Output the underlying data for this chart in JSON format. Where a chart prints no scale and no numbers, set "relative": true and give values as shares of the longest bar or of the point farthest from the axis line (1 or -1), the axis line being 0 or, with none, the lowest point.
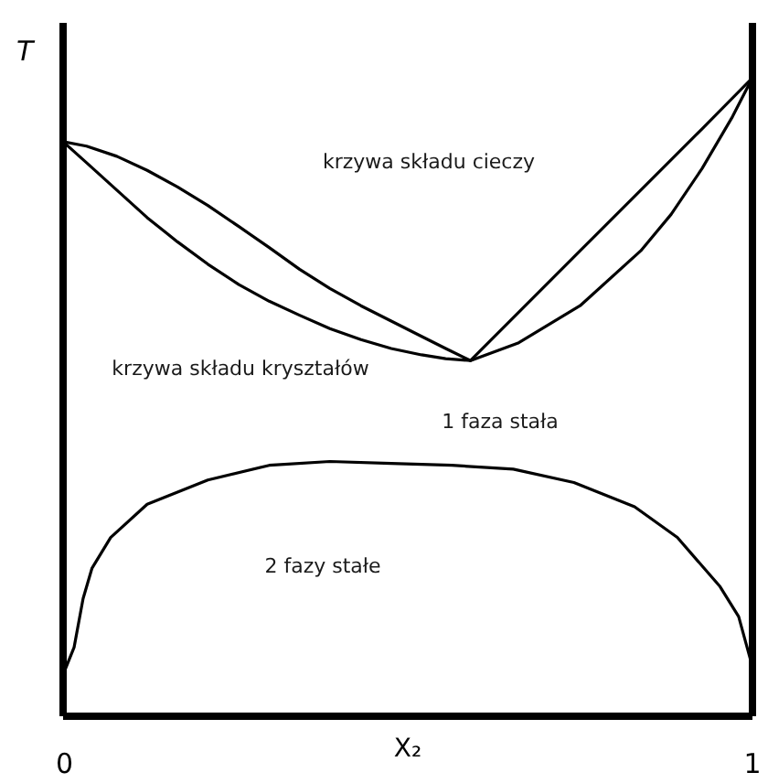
{
  "chart_data": {
    "type": "line",
    "xlabel": "X₂",
    "ylabel": "T",
    "relative": true,
    "xlim": [
      0,
      1
    ],
    "xticks": [
      0,
      1
    ],
    "line_style": "solid",
    "series": [
      {
        "color": "#000000",
        "x": [
          0,
          0.034,
          0.078,
          0.122,
          0.166,
          0.21,
          0.255,
          0.299,
          0.343,
          0.387,
          0.432,
          0.476,
          0.52,
          0.555,
          0.591,
          0.75,
          0.927,
          1.0
        ],
        "values": [
          0.9,
          0.893,
          0.877,
          0.855,
          0.829,
          0.8,
          0.767,
          0.734,
          0.7,
          0.67,
          0.643,
          0.619,
          0.595,
          0.576,
          0.557,
          0.729,
          0.92,
          1.0
        ]
      },
      {
        "color": "#000000",
        "x": [
          0,
          0.034,
          0.078,
          0.122,
          0.166,
          0.21,
          0.255,
          0.299,
          0.343,
          0.387,
          0.432,
          0.476,
          0.52,
          0.555,
          0.591,
          0.661,
          0.75,
          0.838,
          0.882,
          0.927,
          0.971,
          1.0
        ],
        "values": [
          0.9,
          0.867,
          0.824,
          0.781,
          0.743,
          0.708,
          0.676,
          0.65,
          0.628,
          0.607,
          0.59,
          0.576,
          0.566,
          0.56,
          0.557,
          0.585,
          0.643,
          0.729,
          0.786,
          0.858,
          0.939,
          1.0
        ]
      },
      {
        "color": "#000000",
        "x": [
          0,
          0.016,
          0.029,
          0.042,
          0.069,
          0.122,
          0.21,
          0.299,
          0.387,
          0.476,
          0.564,
          0.653,
          0.741,
          0.829,
          0.891,
          0.953,
          0.98,
          0.997,
          1.0
        ],
        "values": [
          0.065,
          0.108,
          0.184,
          0.232,
          0.28,
          0.332,
          0.37,
          0.393,
          0.399,
          0.396,
          0.393,
          0.387,
          0.366,
          0.328,
          0.28,
          0.203,
          0.156,
          0.089,
          0.055
        ]
      }
    ],
    "annotations": [
      "krzywa składu cieczy",
      "krzywa składu kryształów",
      "1 faza stała",
      "2 fazy stałe"
    ]
  }
}
